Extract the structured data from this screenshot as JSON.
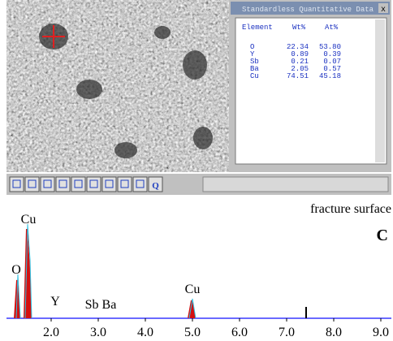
{
  "window": {
    "title": "Standardless Quantitative Data",
    "close": "x"
  },
  "table": {
    "header": [
      "Element",
      "Wt%",
      "At%"
    ],
    "rows": [
      [
        "O",
        "22.34",
        "53.80"
      ],
      [
        "Y",
        "0.89",
        "0.39"
      ],
      [
        "Sb",
        "0.21",
        "0.07"
      ],
      [
        "Ba",
        "2.05",
        "0.57"
      ],
      [
        "Cu",
        "74.51",
        "45.18"
      ]
    ]
  },
  "toolbar": {
    "last_button": "Q"
  },
  "caption": "fracture surface",
  "panel_label": "C",
  "spectrum": {
    "peak_labels": [
      "Cu",
      "O",
      "Y",
      "Sb Ba",
      "Cu"
    ],
    "x_ticks": [
      "2.0",
      "3.0",
      "4.0",
      "5.0",
      "6.0",
      "7.0",
      "8.0",
      "9.0"
    ]
  }
}
